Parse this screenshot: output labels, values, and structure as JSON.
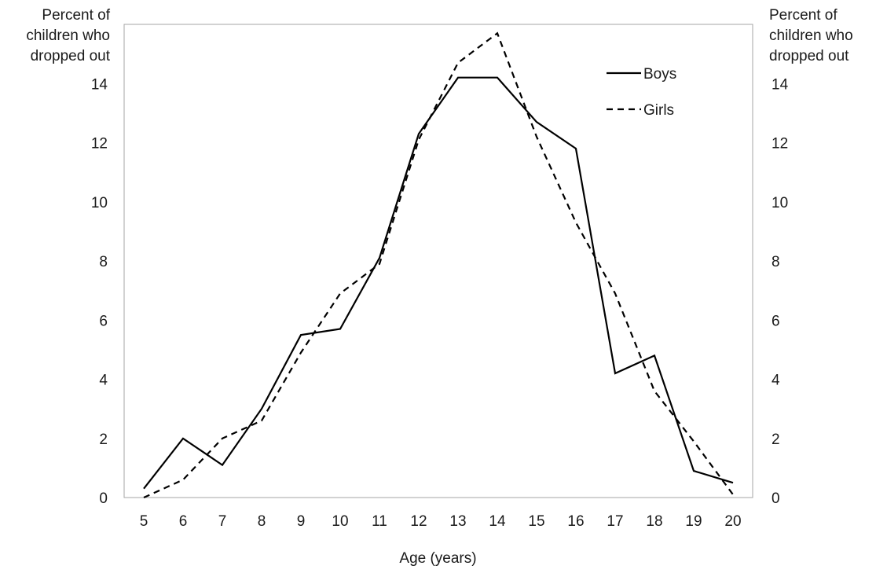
{
  "chart_data": {
    "type": "line",
    "ylabel_left": "Percent of\nchildren who\ndropped out",
    "ylabel_right": "Percent of\nchildren who\ndropped out",
    "xlabel": "Age (years)",
    "x": [
      5,
      6,
      7,
      8,
      9,
      10,
      11,
      12,
      13,
      14,
      15,
      16,
      17,
      18,
      19,
      20
    ],
    "ylim": [
      0,
      16
    ],
    "yticks": [
      0,
      2,
      4,
      6,
      8,
      10,
      12,
      14
    ],
    "grid": false,
    "legend_position": "top-right",
    "series": [
      {
        "name": "Boys",
        "style": "solid",
        "values": [
          0.3,
          2.0,
          1.1,
          3.0,
          5.5,
          5.7,
          8.1,
          12.3,
          14.2,
          14.2,
          12.7,
          11.8,
          4.2,
          4.8,
          0.9,
          0.5
        ]
      },
      {
        "name": "Girls",
        "style": "dashed",
        "values": [
          0.0,
          0.6,
          2.0,
          2.6,
          4.9,
          6.9,
          7.9,
          12.1,
          14.7,
          15.7,
          12.2,
          9.3,
          6.9,
          3.6,
          1.9,
          0.1
        ]
      }
    ],
    "line_color": "#000000"
  }
}
